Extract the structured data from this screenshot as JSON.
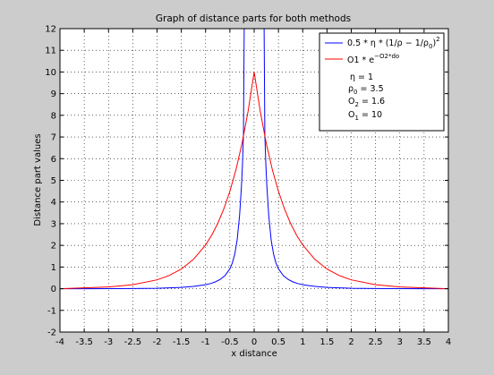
{
  "figure": {
    "background": "#cccccc",
    "axes_background": "#ffffff"
  },
  "chart_data": {
    "type": "line",
    "title": "Graph of distance parts for both methods",
    "xlabel": "x distance",
    "ylabel": "Distance part values",
    "xlim": [
      -4,
      4
    ],
    "ylim": [
      -2,
      12
    ],
    "xticks": [
      -4,
      -3.5,
      -3,
      -2.5,
      -2,
      -1.5,
      -1,
      -0.5,
      0,
      0.5,
      1,
      1.5,
      2,
      2.5,
      3,
      3.5,
      4
    ],
    "yticks": [
      -2,
      -1,
      0,
      1,
      2,
      3,
      4,
      5,
      6,
      7,
      8,
      9,
      10,
      11,
      12
    ],
    "grid": true,
    "legend_location": "top-right",
    "series": [
      {
        "name": "0.5 * η * (1/ρ − 1/ρ0)²",
        "color": "#0000ff",
        "x": [
          -4.0,
          -3.6,
          -3.5,
          -3.0,
          -2.5,
          -2.0,
          -1.5,
          -1.25,
          -1.0,
          -0.9,
          -0.8,
          -0.7,
          -0.6,
          -0.5,
          -0.45,
          -0.4,
          -0.35,
          -0.3,
          -0.26,
          -0.24,
          -0.22,
          0.22,
          0.24,
          0.26,
          0.3,
          0.35,
          0.4,
          0.45,
          0.5,
          0.6,
          0.7,
          0.8,
          0.9,
          1.0,
          1.25,
          1.5,
          2.0,
          2.5,
          3.0,
          3.5,
          3.6,
          4.0
        ],
        "y": [
          0,
          0,
          0.0,
          0.0009,
          0.0057,
          0.0204,
          0.0605,
          0.1058,
          0.1837,
          0.2375,
          0.3136,
          0.4265,
          0.6054,
          0.9184,
          1.1834,
          1.5913,
          2.2518,
          3.3896,
          4.7918,
          5.7818,
          7.1065,
          7.1065,
          5.7818,
          4.7918,
          3.3896,
          2.2518,
          1.5913,
          1.1834,
          0.9184,
          0.6054,
          0.4265,
          0.3136,
          0.2375,
          0.1837,
          0.1058,
          0.0605,
          0.0204,
          0.0057,
          0.0009,
          0.0,
          0,
          0
        ]
      },
      {
        "name": "O1 * e^(−O2*do)",
        "color": "#ff0000",
        "x": [
          -4.0,
          -3.5,
          -3.0,
          -2.5,
          -2.0,
          -1.75,
          -1.5,
          -1.25,
          -1.0,
          -0.875,
          -0.75,
          -0.625,
          -0.5,
          -0.375,
          -0.25,
          -0.125,
          0.0,
          0.125,
          0.25,
          0.375,
          0.5,
          0.625,
          0.75,
          0.875,
          1.0,
          1.25,
          1.5,
          1.75,
          2.0,
          2.5,
          3.0,
          3.5,
          4.0
        ],
        "y": [
          0.0,
          0.037,
          0.082,
          0.183,
          0.408,
          0.608,
          0.907,
          1.353,
          2.019,
          2.466,
          3.012,
          3.679,
          4.493,
          5.488,
          6.703,
          8.187,
          10.0,
          8.187,
          6.703,
          5.488,
          4.493,
          3.679,
          3.012,
          2.466,
          2.019,
          1.353,
          0.907,
          0.608,
          0.408,
          0.183,
          0.082,
          0.037,
          0.0
        ]
      }
    ],
    "legend_params": [
      "η = 1",
      "ρ0 = 3.5",
      "O2 = 1.6",
      "O1 = 10"
    ]
  }
}
